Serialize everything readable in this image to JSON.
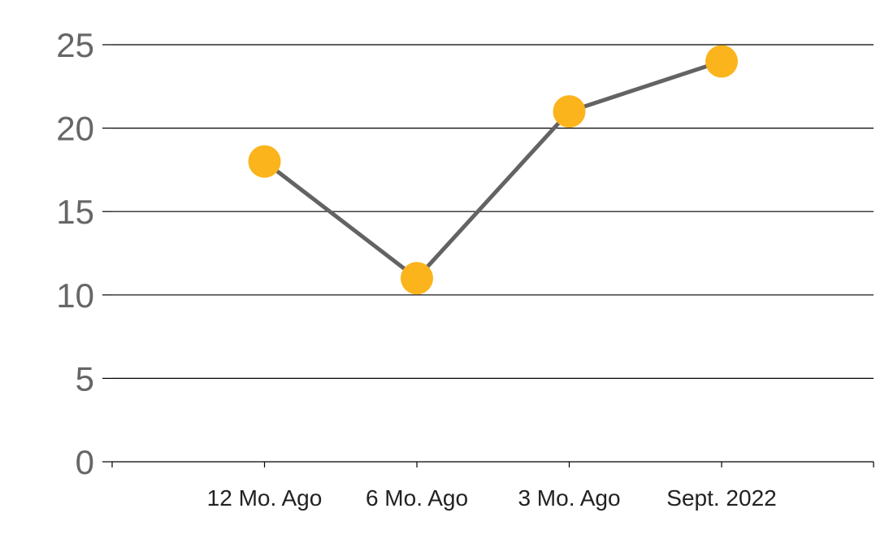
{
  "chart_data": {
    "type": "line",
    "title": "",
    "xlabel": "",
    "ylabel": "",
    "categories": [
      "12 Mo. Ago",
      "6 Mo. Ago",
      "3 Mo. Ago",
      "Sept. 2022"
    ],
    "series": [
      {
        "values": [
          18,
          11,
          21,
          24
        ]
      }
    ],
    "ylim": [
      0,
      25
    ],
    "yticks": [
      "0",
      "5",
      "10",
      "15",
      "20",
      "25"
    ],
    "grid": true,
    "legend": "none",
    "colors": {
      "line": "#636363",
      "marker": "#FBB41C",
      "grid": "#000000",
      "tick_text": "#666666",
      "category_text": "#222222"
    }
  }
}
